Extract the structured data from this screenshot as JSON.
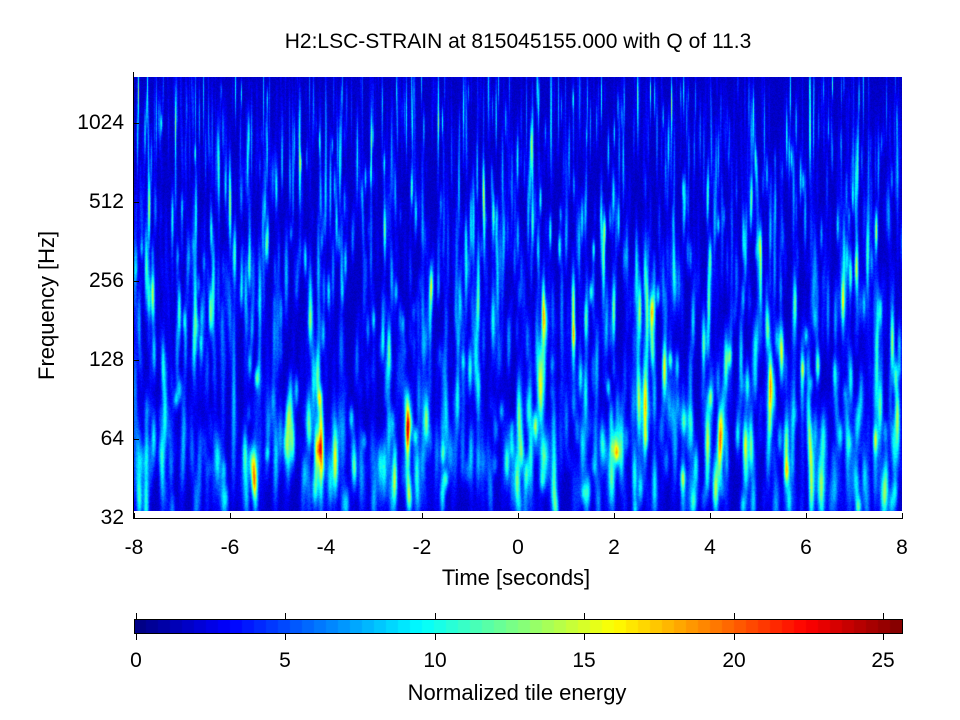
{
  "chart_data": {
    "type": "heatmap",
    "title": "H2:LSC-STRAIN at 815045155.000 with Q of 11.3",
    "channel": "H2:LSC-STRAIN",
    "gps_time": "815045155.000",
    "q_value": 11.3,
    "xlabel": "Time [seconds]",
    "ylabel": "Frequency [Hz]",
    "xlim": [
      -8,
      8
    ],
    "ylim": [
      32,
      1600
    ],
    "yscale": "log2",
    "xticks": [
      -8,
      -6,
      -4,
      -2,
      0,
      2,
      4,
      6,
      8
    ],
    "xtick_labels": [
      "-8",
      "-6",
      "-4",
      "-2",
      "0",
      "2",
      "4",
      "6",
      "8"
    ],
    "yticks": [
      32,
      64,
      128,
      256,
      512,
      1024
    ],
    "ytick_labels": [
      "32",
      "64",
      "128",
      "256",
      "512",
      "1024"
    ],
    "description": "Q-transform spectrogram of background noise; mostly dark blue (energy ~1-5) with thin vertical streaks up to ~8-10 (light blue/cyan); no prominent signal.",
    "colormap": "jet",
    "colorbar": {
      "label": "Normalized tile energy",
      "range": [
        0,
        25.65
      ],
      "ticks": [
        0,
        5,
        10,
        15,
        20,
        25
      ],
      "tick_labels": [
        "0",
        "5",
        "10",
        "15",
        "20",
        "25"
      ],
      "orientation": "horizontal",
      "steps": 64
    },
    "typical_energy_range": [
      0,
      9
    ],
    "grid": false,
    "legend": null
  }
}
